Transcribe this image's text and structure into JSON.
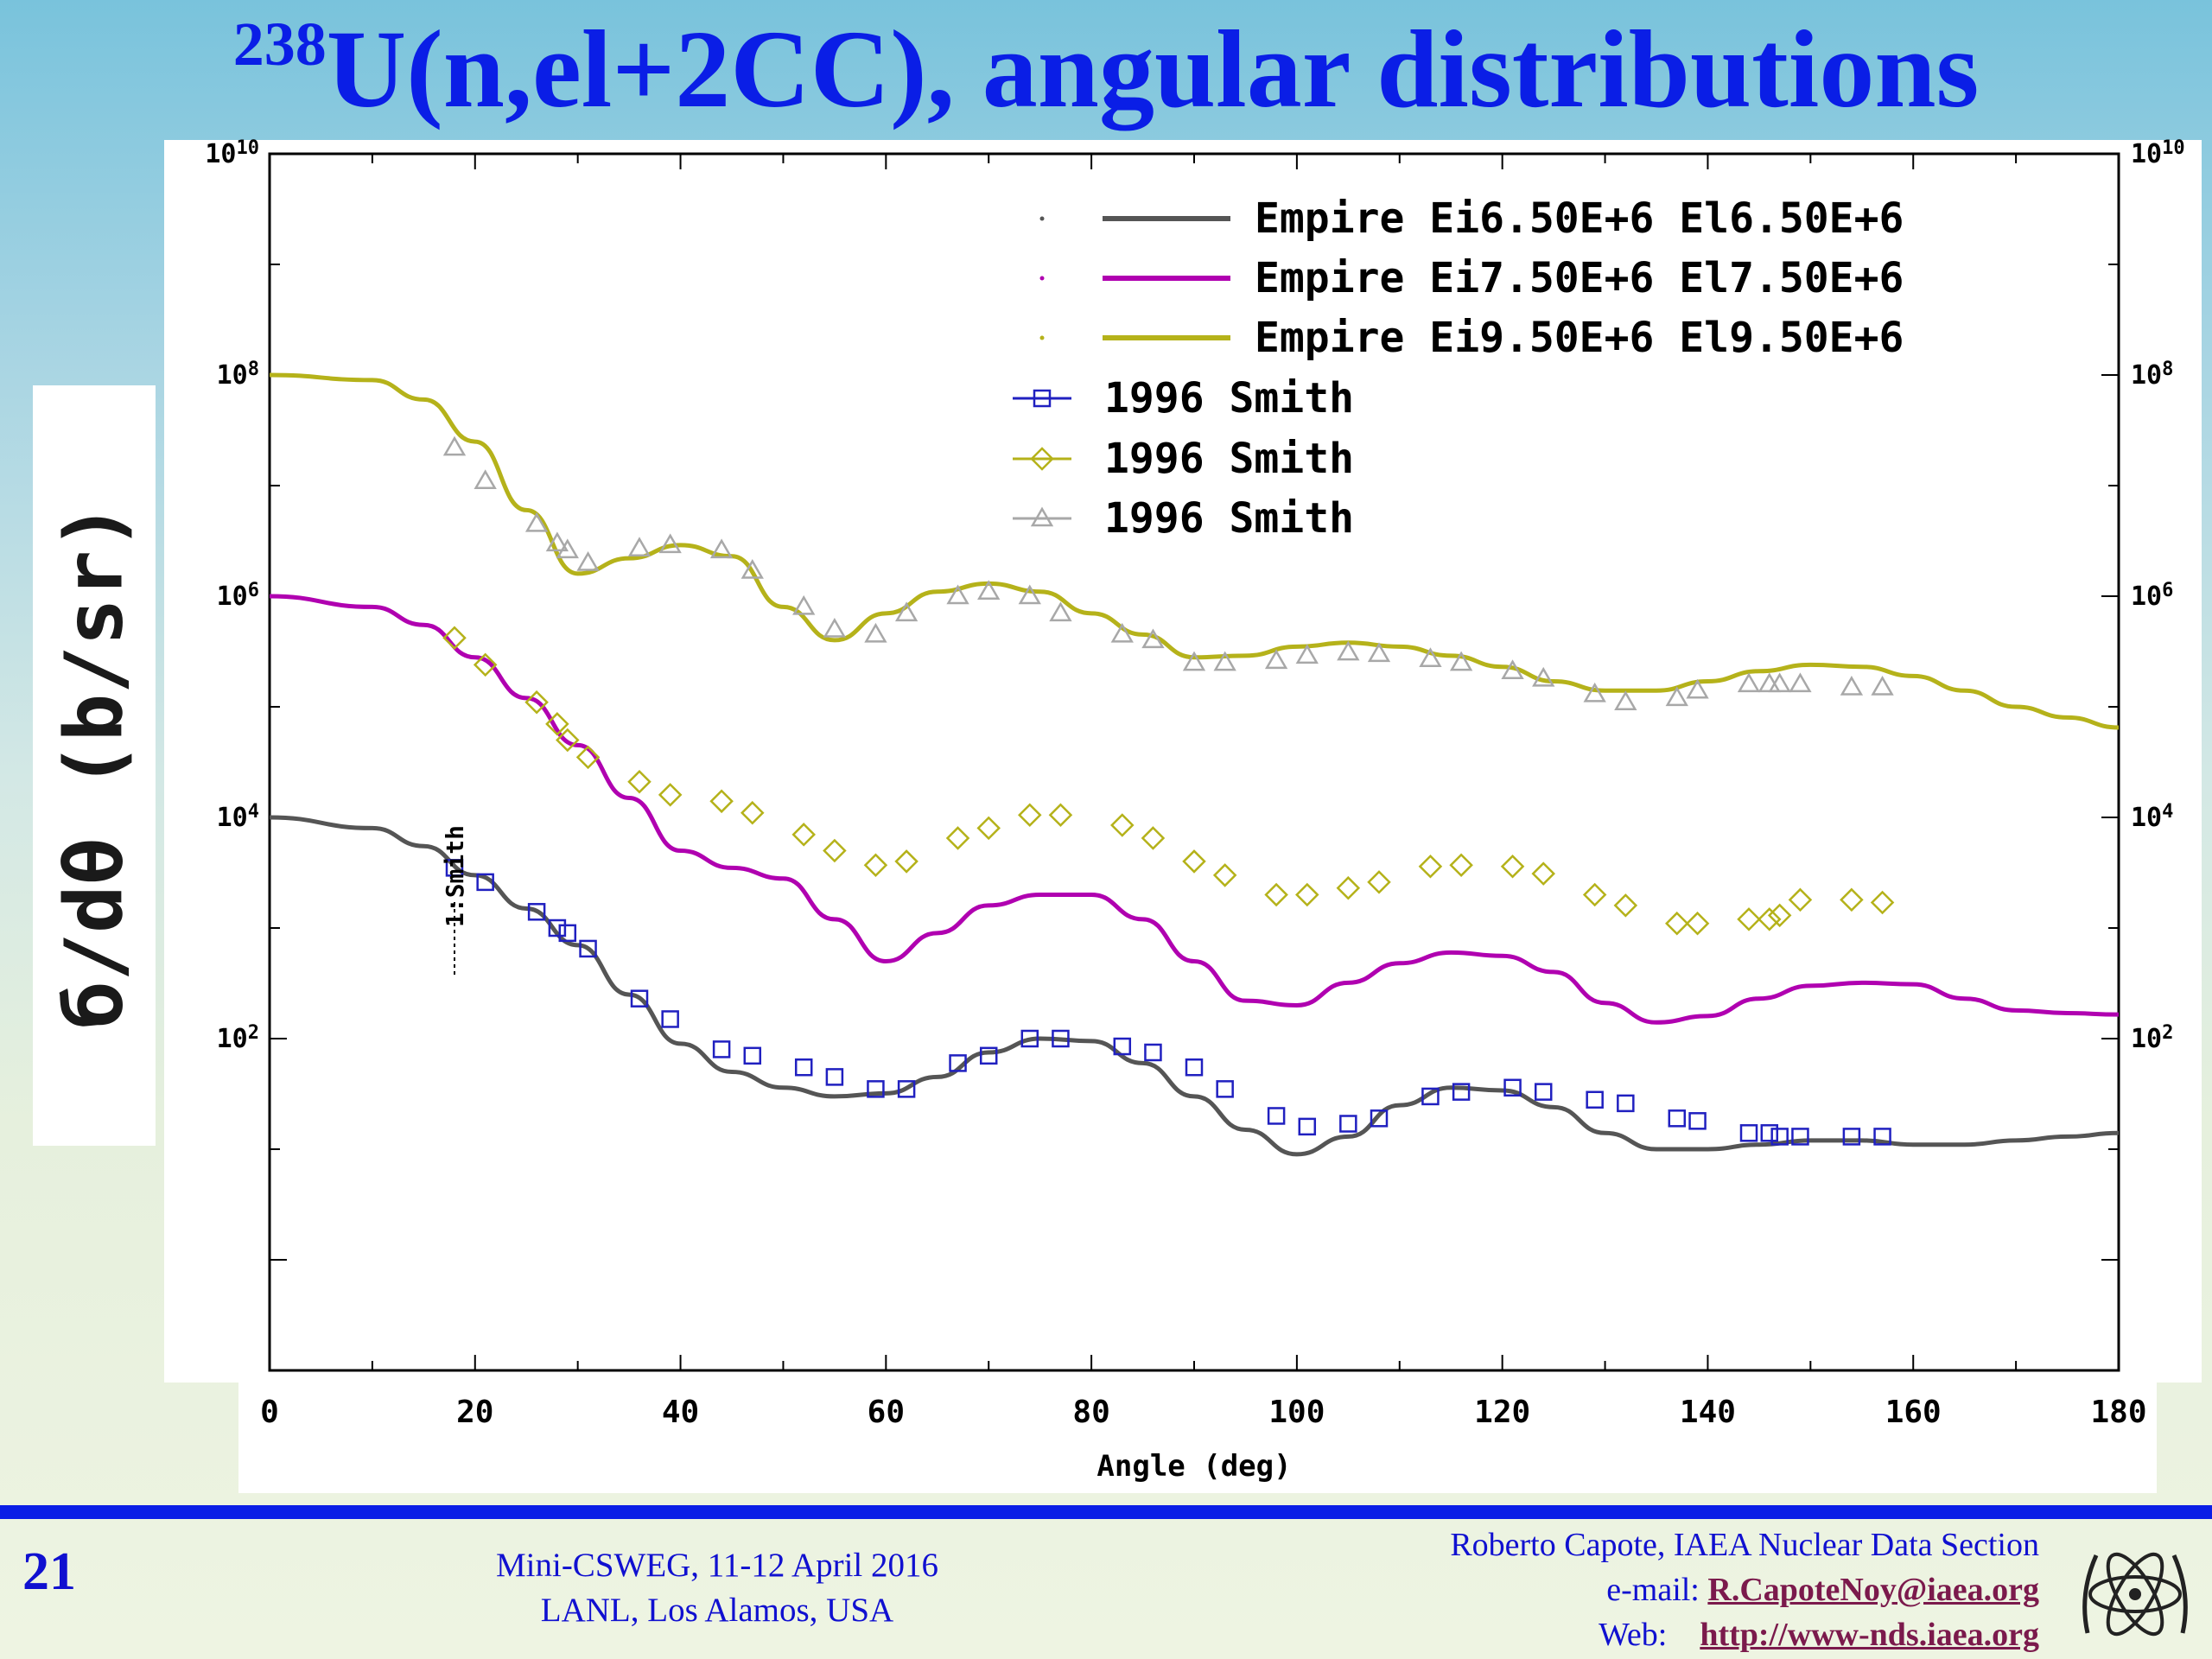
{
  "slide": {
    "title_sup": "238",
    "title_main": "U(n,el+2CC), angular distributions",
    "page_number": "21",
    "conference_line1": "Mini-CSWEG, 11-12 April 2016",
    "conference_line2": "LANL, Los Alamos, USA",
    "author_line": "Roberto Capote, IAEA Nuclear Data Section",
    "email_label": "e-mail:",
    "email": "R.CapoteNoy@iaea.org",
    "web_label": "Web:",
    "web": "http://www-nds.iaea.org",
    "logo_icon": "iaea-logo-icon"
  },
  "chart_data": {
    "type": "scatter",
    "ylabel": "б/dθ (b/sr)",
    "xlabel": "Angle (deg)",
    "xlim": [
      0,
      180
    ],
    "ylim": [
      0.1,
      10000000000
    ],
    "yscale": "log",
    "x_ticks": [
      "0",
      "20",
      "40",
      "60",
      "80",
      "100",
      "120",
      "140",
      "160",
      "180"
    ],
    "y_ticks": [
      {
        "value": 100,
        "base": "10",
        "exp": "2"
      },
      {
        "value": 10000,
        "base": "10",
        "exp": "4"
      },
      {
        "value": 1000000,
        "base": "10",
        "exp": "6"
      },
      {
        "value": 100000000,
        "base": "10",
        "exp": "8"
      },
      {
        "value": 10000000000,
        "base": "10",
        "exp": "10"
      }
    ],
    "annotation": "1:Smith",
    "annotation_x": 18,
    "legend_position": "top-right",
    "grid": false,
    "series": [
      {
        "name": "Empire Ei6.50E+6 El6.50E+6",
        "kind": "line",
        "color": "#555555",
        "x": [
          0,
          10,
          15,
          20,
          25,
          30,
          35,
          40,
          45,
          50,
          55,
          60,
          65,
          70,
          75,
          80,
          85,
          90,
          95,
          100,
          105,
          110,
          115,
          120,
          125,
          130,
          135,
          140,
          145,
          150,
          155,
          160,
          165,
          170,
          175,
          180
        ],
        "y": [
          10000,
          8000,
          5500,
          3000,
          1500,
          700,
          250,
          90,
          50,
          36,
          30,
          32,
          45,
          75,
          100,
          95,
          60,
          30,
          15,
          9,
          13,
          25,
          36,
          34,
          24,
          14,
          10,
          10,
          11,
          12,
          12,
          11,
          11,
          12,
          13,
          14
        ]
      },
      {
        "name": "Empire Ei7.50E+6 El7.50E+6",
        "kind": "line",
        "color": "#b000b0",
        "x": [
          0,
          10,
          15,
          20,
          25,
          30,
          35,
          40,
          45,
          50,
          55,
          60,
          65,
          70,
          75,
          80,
          85,
          90,
          95,
          100,
          105,
          110,
          115,
          120,
          125,
          130,
          135,
          140,
          145,
          150,
          155,
          160,
          165,
          170,
          175,
          180
        ],
        "y": [
          1000000,
          800000,
          550000,
          280000,
          120000,
          45000,
          15000,
          5000,
          3500,
          2800,
          1200,
          500,
          900,
          1600,
          2000,
          2000,
          1200,
          500,
          220,
          200,
          320,
          480,
          600,
          560,
          400,
          210,
          140,
          160,
          230,
          300,
          320,
          310,
          230,
          180,
          170,
          165
        ]
      },
      {
        "name": "Empire Ei9.50E+6 El9.50E+6",
        "kind": "line",
        "color": "#b5b21a",
        "x": [
          0,
          10,
          15,
          20,
          25,
          30,
          35,
          40,
          45,
          50,
          55,
          60,
          65,
          70,
          75,
          80,
          85,
          90,
          95,
          100,
          105,
          110,
          115,
          120,
          125,
          130,
          135,
          140,
          145,
          150,
          155,
          160,
          165,
          170,
          175,
          180
        ],
        "y": [
          100000000,
          90000000,
          60000000,
          25000000,
          6000000,
          1600000,
          2200000,
          2900000,
          2300000,
          800000,
          400000,
          700000,
          1100000,
          1300000,
          1100000,
          700000,
          450000,
          280000,
          290000,
          350000,
          380000,
          350000,
          290000,
          230000,
          170000,
          140000,
          140000,
          170000,
          210000,
          240000,
          230000,
          190000,
          140000,
          100000,
          80000,
          65000
        ]
      },
      {
        "name": "1996 Smith",
        "kind": "marker",
        "marker": "square",
        "color": "#2020c0",
        "x": [
          18,
          21,
          26,
          28,
          29,
          31,
          36,
          39,
          44,
          47,
          52,
          55,
          59,
          62,
          67,
          70,
          74,
          77,
          83,
          86,
          90,
          93,
          98,
          101,
          105,
          108,
          113,
          116,
          121,
          124,
          129,
          132,
          137,
          139,
          144,
          146,
          147,
          149,
          154,
          157
        ],
        "y": [
          3500,
          2600,
          1400,
          1000,
          900,
          650,
          230,
          150,
          80,
          70,
          55,
          45,
          35,
          35,
          60,
          70,
          100,
          100,
          85,
          75,
          55,
          35,
          20,
          16,
          17,
          19,
          30,
          33,
          36,
          33,
          28,
          26,
          19,
          18,
          14,
          14,
          13,
          13,
          13,
          13
        ]
      },
      {
        "name": "1996 Smith",
        "kind": "marker",
        "marker": "diamond",
        "color": "#b5b21a",
        "x": [
          18,
          21,
          26,
          28,
          29,
          31,
          36,
          39,
          44,
          47,
          52,
          55,
          59,
          62,
          67,
          70,
          74,
          77,
          83,
          86,
          90,
          93,
          98,
          101,
          105,
          108,
          113,
          116,
          121,
          124,
          129,
          132,
          137,
          139,
          144,
          146,
          147,
          149,
          154,
          157
        ],
        "y": [
          420000,
          240000,
          110000,
          70000,
          50000,
          35000,
          21000,
          16000,
          14000,
          11000,
          7000,
          5000,
          3700,
          4000,
          6500,
          8000,
          10500,
          10500,
          8500,
          6500,
          4000,
          3000,
          2000,
          2000,
          2300,
          2600,
          3600,
          3700,
          3600,
          3100,
          2000,
          1600,
          1100,
          1100,
          1200,
          1200,
          1300,
          1800,
          1800,
          1700
        ]
      },
      {
        "name": "1996 Smith",
        "kind": "marker",
        "marker": "triangle",
        "color": "#a8a8a8",
        "x": [
          18,
          21,
          26,
          28,
          29,
          31,
          36,
          39,
          44,
          47,
          52,
          55,
          59,
          62,
          67,
          70,
          74,
          77,
          83,
          86,
          90,
          93,
          98,
          101,
          105,
          108,
          113,
          116,
          121,
          124,
          129,
          132,
          137,
          139,
          144,
          146,
          147,
          149,
          154,
          157
        ],
        "y": [
          22000000,
          11000000,
          4500000,
          3000000,
          2600000,
          2000000,
          2700000,
          2900000,
          2600000,
          1700000,
          800000,
          500000,
          450000,
          700000,
          1000000,
          1100000,
          1000000,
          700000,
          450000,
          400000,
          250000,
          250000,
          260000,
          290000,
          310000,
          300000,
          270000,
          250000,
          210000,
          180000,
          130000,
          110000,
          120000,
          140000,
          160000,
          160000,
          160000,
          160000,
          150000,
          150000
        ]
      }
    ]
  }
}
